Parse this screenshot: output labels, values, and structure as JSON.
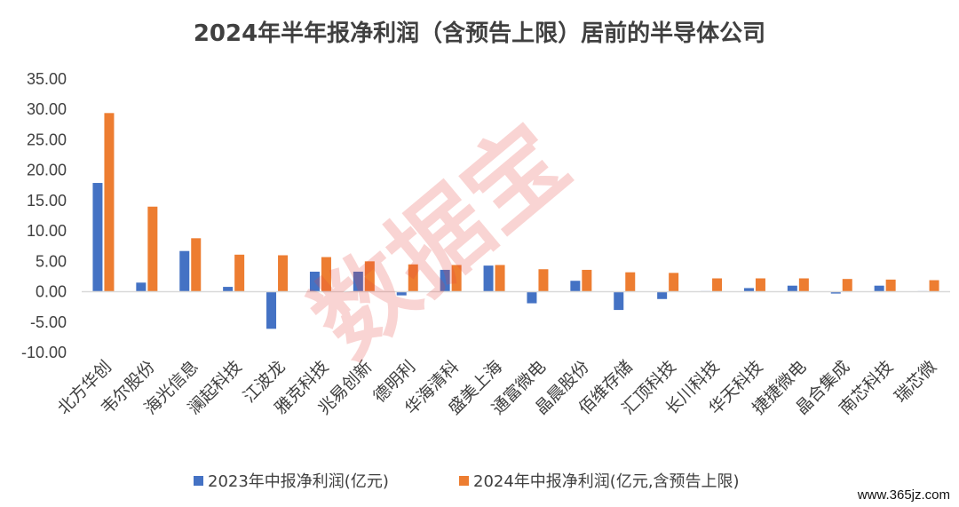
{
  "chart_data": {
    "type": "bar",
    "title": "2024年半年报净利润（含预告上限）居前的半导体公司",
    "categories": [
      "北方华创",
      "韦尔股份",
      "海光信息",
      "澜起科技",
      "江波龙",
      "雅克科技",
      "兆易创新",
      "德明利",
      "华海清科",
      "盛美上海",
      "通富微电",
      "晶晨股份",
      "佰维存储",
      "汇顶科技",
      "长川科技",
      "华天科技",
      "捷捷微电",
      "晶合集成",
      "南芯科技",
      "瑞芯微"
    ],
    "series": [
      {
        "name": "2023年中报净利润(亿元)",
        "color": "#4472c4",
        "values": [
          17.9,
          1.5,
          6.7,
          0.8,
          -6.1,
          3.3,
          3.3,
          -0.6,
          3.6,
          4.3,
          -1.9,
          1.8,
          -3.0,
          -1.2,
          0.1,
          0.6,
          1.0,
          -0.3,
          1.0,
          0.1
        ]
      },
      {
        "name": "2024年中报净利润(亿元,含预告上限)",
        "color": "#ed7d31",
        "values": [
          29.4,
          14.0,
          8.8,
          6.1,
          6.0,
          5.7,
          5.0,
          4.5,
          4.4,
          4.4,
          3.7,
          3.6,
          3.2,
          3.1,
          2.2,
          2.2,
          2.2,
          2.1,
          2.0,
          1.9
        ]
      }
    ],
    "yticks": [
      "35.00",
      "30.00",
      "25.00",
      "20.00",
      "15.00",
      "10.00",
      "5.00",
      "0.00",
      "-5.00",
      "-10.00"
    ],
    "ylim": [
      -10,
      35
    ],
    "grid": false,
    "legend": "bottom"
  },
  "watermark": "数据宝",
  "site_label": "www.365jz.com"
}
